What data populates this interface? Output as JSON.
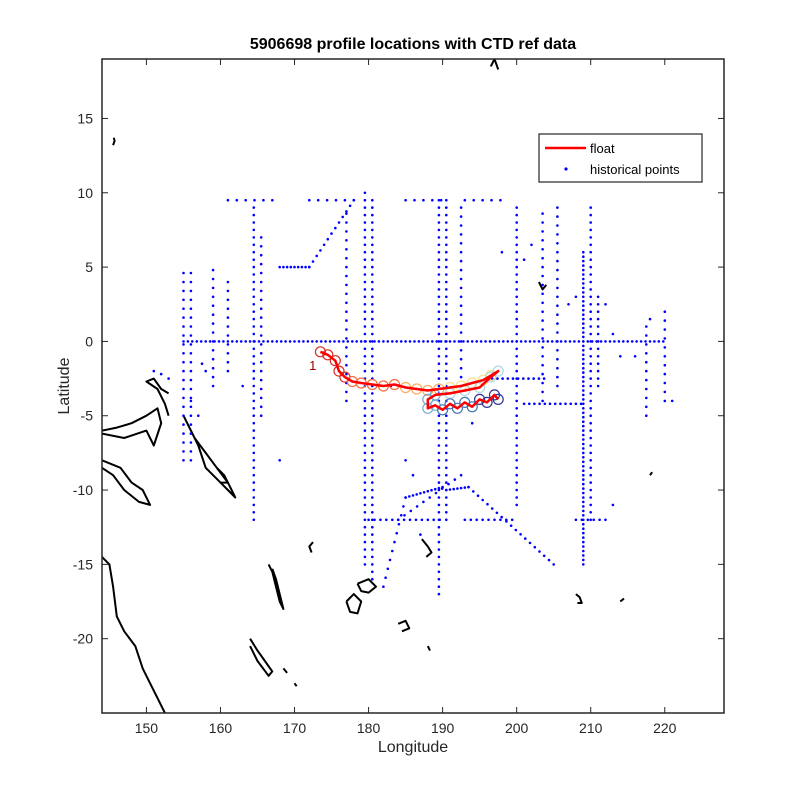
{
  "chart_data": {
    "type": "scatter",
    "title": "5906698 profile locations with CTD ref data",
    "xlabel": "Longitude",
    "ylabel": "Latitude",
    "xlim": [
      144,
      228
    ],
    "ylim": [
      -25,
      19
    ],
    "xticks": [
      150,
      160,
      170,
      180,
      190,
      200,
      210,
      220
    ],
    "yticks": [
      -20,
      -15,
      -10,
      -5,
      0,
      5,
      10,
      15
    ],
    "grid": false,
    "legend_position": "top-right",
    "colors": {
      "float": "#ff0000",
      "historical": "#0000ff",
      "coast": "#000000",
      "profile_markers": [
        "#d73027",
        "#f46d43",
        "#fdae61",
        "#fee08b",
        "#abd9e9",
        "#74add1",
        "#4575b4",
        "#313695"
      ]
    },
    "series": [
      {
        "name": "float",
        "start_label": "1",
        "points": [
          [
            173.5,
            -0.7
          ],
          [
            174.5,
            -0.9
          ],
          [
            175.5,
            -1.3
          ],
          [
            176.0,
            -2.0
          ],
          [
            176.8,
            -2.4
          ],
          [
            177.8,
            -2.7
          ],
          [
            179.0,
            -2.8
          ],
          [
            180.5,
            -2.9
          ],
          [
            182.0,
            -3.0
          ],
          [
            183.5,
            -2.9
          ],
          [
            185.0,
            -3.1
          ],
          [
            186.5,
            -3.2
          ],
          [
            188.0,
            -3.3
          ],
          [
            189.5,
            -3.2
          ],
          [
            191.0,
            -3.1
          ],
          [
            192.5,
            -3.0
          ],
          [
            194.0,
            -2.8
          ],
          [
            195.5,
            -2.6
          ],
          [
            196.5,
            -2.3
          ],
          [
            197.5,
            -2.0
          ],
          [
            196.5,
            -2.4
          ],
          [
            195.0,
            -3.1
          ],
          [
            193.0,
            -3.3
          ],
          [
            191.0,
            -3.5
          ],
          [
            189.0,
            -3.6
          ],
          [
            188.0,
            -3.9
          ],
          [
            188.0,
            -4.5
          ],
          [
            189.0,
            -4.3
          ],
          [
            190.0,
            -4.6
          ],
          [
            191.0,
            -4.2
          ],
          [
            192.0,
            -4.5
          ],
          [
            193.0,
            -4.1
          ],
          [
            194.0,
            -4.4
          ],
          [
            195.0,
            -3.9
          ],
          [
            196.0,
            -4.1
          ],
          [
            197.0,
            -3.6
          ],
          [
            197.5,
            -3.9
          ]
        ]
      },
      {
        "name": "historical points",
        "rows": [
          {
            "lat": 0,
            "lon_from": 155,
            "lon_to": 220,
            "step": 0.6
          },
          {
            "lat": 9.5,
            "lon_from": 161,
            "lon_to": 167,
            "step": 1.2
          },
          {
            "lat": 9.5,
            "lon_from": 172,
            "lon_to": 178,
            "step": 1.2
          },
          {
            "lat": 9.5,
            "lon_from": 185,
            "lon_to": 190,
            "step": 1.2
          },
          {
            "lat": 9.5,
            "lon_from": 193,
            "lon_to": 198,
            "step": 1.2
          },
          {
            "lat": 5,
            "lon_from": 168,
            "lon_to": 172,
            "step": 0.5
          },
          {
            "lat": -2.5,
            "lon_from": 196,
            "lon_to": 204,
            "step": 0.7
          },
          {
            "lat": -4.2,
            "lon_from": 201,
            "lon_to": 209,
            "step": 0.7
          },
          {
            "lat": -12,
            "lon_from": 180,
            "lon_to": 190,
            "step": 0.8
          },
          {
            "lat": -12,
            "lon_from": 193,
            "lon_to": 200,
            "step": 0.8
          },
          {
            "lat": -12,
            "lon_from": 208,
            "lon_to": 212,
            "step": 0.8
          }
        ],
        "columns": [
          {
            "lon": 155,
            "lat_from": -8,
            "lat_to": 5,
            "step": 0.6
          },
          {
            "lon": 156,
            "lat_from": -8,
            "lat_to": 5,
            "step": 0.6
          },
          {
            "lon": 159,
            "lat_from": -3,
            "lat_to": 5,
            "step": 0.6
          },
          {
            "lon": 161,
            "lat_from": -2,
            "lat_to": 4,
            "step": 0.6
          },
          {
            "lon": 164.5,
            "lat_from": -12,
            "lat_to": 9,
            "step": 0.5
          },
          {
            "lon": 165.5,
            "lat_from": -5,
            "lat_to": 7,
            "step": 0.6
          },
          {
            "lon": 177,
            "lat_from": -4,
            "lat_to": 9,
            "step": 0.6
          },
          {
            "lon": 179.5,
            "lat_from": -15,
            "lat_to": 10,
            "step": 0.5
          },
          {
            "lon": 180.5,
            "lat_from": -16,
            "lat_to": 9.5,
            "step": 0.5
          },
          {
            "lon": 189.5,
            "lat_from": -17,
            "lat_to": 9.5,
            "step": 0.5
          },
          {
            "lon": 190.5,
            "lat_from": -12,
            "lat_to": 9.5,
            "step": 0.5
          },
          {
            "lon": 192.5,
            "lat_from": -3,
            "lat_to": 9,
            "step": 0.6
          },
          {
            "lon": 200,
            "lat_from": -11,
            "lat_to": 9,
            "step": 0.5
          },
          {
            "lon": 203.5,
            "lat_from": -4,
            "lat_to": 9,
            "step": 0.6
          },
          {
            "lon": 205.5,
            "lat_from": -3,
            "lat_to": 9,
            "step": 0.6
          },
          {
            "lon": 209,
            "lat_from": -15,
            "lat_to": 6,
            "step": 0.3
          },
          {
            "lon": 210,
            "lat_from": -12,
            "lat_to": 9,
            "step": 0.5
          },
          {
            "lon": 211,
            "lat_from": -3,
            "lat_to": 3,
            "step": 0.5
          },
          {
            "lon": 217.5,
            "lat_from": -5,
            "lat_to": 1,
            "step": 0.6
          },
          {
            "lon": 220,
            "lat_from": -4,
            "lat_to": 2.5,
            "step": 0.6
          }
        ],
        "segments": [
          {
            "from": [
              172,
              5
            ],
            "to": [
              178,
              9.5
            ],
            "n": 12
          },
          {
            "from": [
              185,
              -10.5
            ],
            "to": [
              190,
              -9.8
            ],
            "n": 10
          },
          {
            "from": [
              190.5,
              -10
            ],
            "to": [
              193.5,
              -9.8
            ],
            "n": 6
          },
          {
            "from": [
              193.5,
              -9.8
            ],
            "to": [
              205,
              -15
            ],
            "n": 18
          },
          {
            "from": [
              185,
              -10.5
            ],
            "to": [
              182,
              -16.5
            ],
            "n": 10
          },
          {
            "from": [
              192.5,
              -9
            ],
            "to": [
              184,
              -12
            ],
            "n": 10
          }
        ],
        "extra": [
          [
            151,
            -2
          ],
          [
            152,
            -2.2
          ],
          [
            153,
            -2.5
          ],
          [
            156,
            -4
          ],
          [
            157,
            -5
          ],
          [
            158,
            -2
          ],
          [
            157.5,
            -1.5
          ],
          [
            163,
            -3
          ],
          [
            168,
            -8
          ],
          [
            183,
            -3
          ],
          [
            185,
            -8
          ],
          [
            186,
            -9
          ],
          [
            187,
            -13
          ],
          [
            194,
            -5.5
          ],
          [
            198,
            6
          ],
          [
            201,
            5.5
          ],
          [
            202,
            6.5
          ],
          [
            212,
            2.5
          ],
          [
            213,
            0.5
          ],
          [
            214,
            -1
          ],
          [
            216,
            -1
          ],
          [
            218,
            1.5
          ],
          [
            221,
            -4
          ],
          [
            207,
            2.5
          ],
          [
            208,
            3
          ],
          [
            213,
            -11
          ]
        ]
      }
    ],
    "coastlines": [
      [
        [
          144,
          -6.2
        ],
        [
          147,
          -6.5
        ],
        [
          150,
          -6.0
        ],
        [
          151,
          -7
        ],
        [
          152,
          -5.5
        ],
        [
          151.5,
          -4.5
        ],
        [
          150,
          -5
        ],
        [
          148,
          -5.5
        ],
        [
          146,
          -5.8
        ],
        [
          144,
          -6
        ]
      ],
      [
        [
          144,
          -8
        ],
        [
          146.5,
          -8.5
        ],
        [
          148,
          -9.5
        ],
        [
          149.5,
          -10
        ],
        [
          150.5,
          -11
        ],
        [
          149,
          -10.8
        ],
        [
          147,
          -10
        ],
        [
          145.5,
          -9
        ],
        [
          144,
          -8.5
        ]
      ],
      [
        [
          144,
          -14.5
        ],
        [
          145,
          -15
        ],
        [
          145.5,
          -16.5
        ],
        [
          146,
          -18.5
        ],
        [
          147,
          -19.5
        ],
        [
          148.5,
          -20.5
        ],
        [
          149.5,
          -22
        ],
        [
          150.5,
          -23
        ],
        [
          151.5,
          -24
        ],
        [
          152.5,
          -25
        ]
      ],
      [
        [
          153,
          -3.5
        ],
        [
          152,
          -3.2
        ],
        [
          151,
          -2.5
        ],
        [
          150,
          -2.7
        ],
        [
          151.5,
          -3.2
        ],
        [
          152.5,
          -4.2
        ],
        [
          153,
          -5
        ]
      ],
      [
        [
          155,
          -5
        ],
        [
          156,
          -6
        ],
        [
          157,
          -7
        ],
        [
          158,
          -8.5
        ],
        [
          159,
          -9
        ],
        [
          160,
          -9.5
        ],
        [
          161,
          -9.5
        ],
        [
          159.5,
          -8.5
        ],
        [
          158,
          -7.5
        ],
        [
          156.5,
          -6.5
        ],
        [
          155,
          -5
        ]
      ],
      [
        [
          159.5,
          -8.5
        ],
        [
          160.5,
          -9
        ],
        [
          161.5,
          -10
        ],
        [
          162,
          -10.5
        ],
        [
          161,
          -10
        ],
        [
          160,
          -9.5
        ]
      ],
      [
        [
          177,
          -17.5
        ],
        [
          178,
          -17
        ],
        [
          179,
          -17.5
        ],
        [
          178.5,
          -18.3
        ],
        [
          177.5,
          -18.2
        ],
        [
          177,
          -17.5
        ]
      ],
      [
        [
          178.5,
          -16.3
        ],
        [
          180,
          -16
        ],
        [
          181,
          -16.5
        ],
        [
          180,
          -16.9
        ],
        [
          179,
          -16.8
        ],
        [
          178.5,
          -16.3
        ]
      ],
      [
        [
          166.5,
          -15
        ],
        [
          167,
          -15.5
        ],
        [
          167.5,
          -16.5
        ],
        [
          168,
          -17.5
        ],
        [
          168.5,
          -18
        ],
        [
          168,
          -17
        ],
        [
          167.5,
          -16
        ],
        [
          167,
          -15.3
        ]
      ],
      [
        [
          164,
          -20
        ],
        [
          165,
          -20.8
        ],
        [
          166,
          -21.5
        ],
        [
          167,
          -22.2
        ],
        [
          166.5,
          -22.5
        ],
        [
          165,
          -21.5
        ],
        [
          164,
          -20.5
        ]
      ],
      [
        [
          184,
          -19
        ],
        [
          185,
          -18.8
        ],
        [
          185.5,
          -19.3
        ],
        [
          184.5,
          -19.5
        ]
      ],
      [
        [
          208,
          -17
        ],
        [
          208.5,
          -17.2
        ],
        [
          208.8,
          -17.6
        ],
        [
          208.2,
          -17.6
        ]
      ],
      [
        [
          145.5,
          13.2
        ],
        [
          145.7,
          13.5
        ],
        [
          145.6,
          13.7
        ]
      ],
      [
        [
          172.5,
          -13.5
        ],
        [
          172,
          -13.8
        ],
        [
          172.3,
          -14.2
        ]
      ],
      [
        [
          187.2,
          -13.3
        ],
        [
          188,
          -13.8
        ],
        [
          188.5,
          -14.2
        ],
        [
          187.8,
          -14.5
        ]
      ],
      [
        [
          203,
          4
        ],
        [
          203.5,
          3.5
        ],
        [
          204,
          3.8
        ]
      ],
      [
        [
          196.5,
          18.5
        ],
        [
          197,
          19
        ],
        [
          197.5,
          18.3
        ]
      ],
      [
        [
          218,
          -9
        ],
        [
          218.3,
          -8.8
        ]
      ],
      [
        [
          214,
          -17.5
        ],
        [
          214.5,
          -17.3
        ]
      ],
      [
        [
          188,
          -20.5
        ],
        [
          188.3,
          -20.8
        ]
      ],
      [
        [
          168.5,
          -22
        ],
        [
          169,
          -22.3
        ]
      ],
      [
        [
          170,
          -23
        ],
        [
          170.3,
          -23.2
        ]
      ]
    ]
  }
}
